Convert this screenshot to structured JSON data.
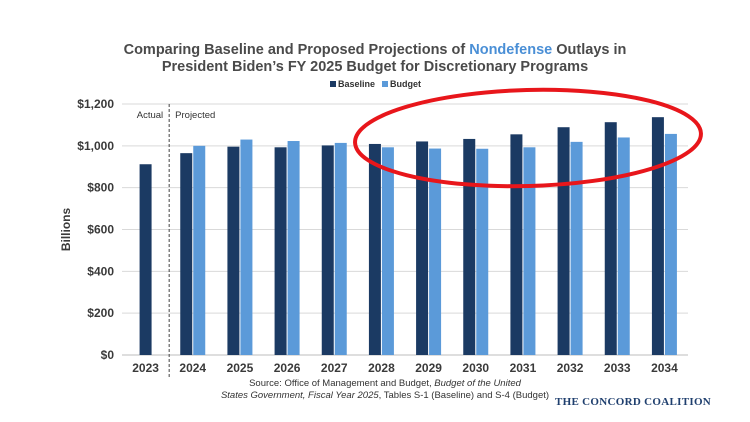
{
  "title": {
    "line1_pre": "Comparing Baseline and Proposed Projections of ",
    "line1_highlight": "Nondefense",
    "line1_post": " Outlays in",
    "line2": "President Biden’s FY 2025 Budget for Discretionary Programs"
  },
  "source": {
    "prefix": "Source: Office of Management and Budget, ",
    "italic1": "Budget of the United",
    "italic2": "States Government, Fiscal Year 2025",
    "suffix": ", Tables S-1 (Baseline) and S-4 (Budget)"
  },
  "brand": "THE CONCORD COALITION",
  "colors": {
    "baseline": "#1b3a63",
    "budget": "#5b9ad9",
    "highlight_text": "#4a8fd6",
    "annotation_ellipse": "#e8161b"
  },
  "chart_data": {
    "type": "bar",
    "categories": [
      "2023",
      "2024",
      "2025",
      "2026",
      "2027",
      "2028",
      "2029",
      "2030",
      "2031",
      "2032",
      "2033",
      "2034"
    ],
    "series": [
      {
        "name": "Baseline",
        "values": [
          912,
          965,
          996,
          993,
          1002,
          1009,
          1021,
          1033,
          1055,
          1089,
          1113,
          1137
        ]
      },
      {
        "name": "Budget",
        "values": [
          null,
          1000,
          1030,
          1023,
          1014,
          993,
          987,
          986,
          993,
          1019,
          1040,
          1057
        ]
      }
    ],
    "ylabel": "Billions",
    "xlabel": "",
    "ylim": [
      0,
      1200
    ],
    "yticks": [
      "$0",
      "$200",
      "$400",
      "$600",
      "$800",
      "$1,000",
      "$1,200"
    ],
    "yticks_values": [
      0,
      200,
      400,
      600,
      800,
      1000,
      1200
    ],
    "annotations": {
      "actual": "Actual",
      "projected": "Projected"
    },
    "legend_position": "top-center",
    "grid": true
  }
}
